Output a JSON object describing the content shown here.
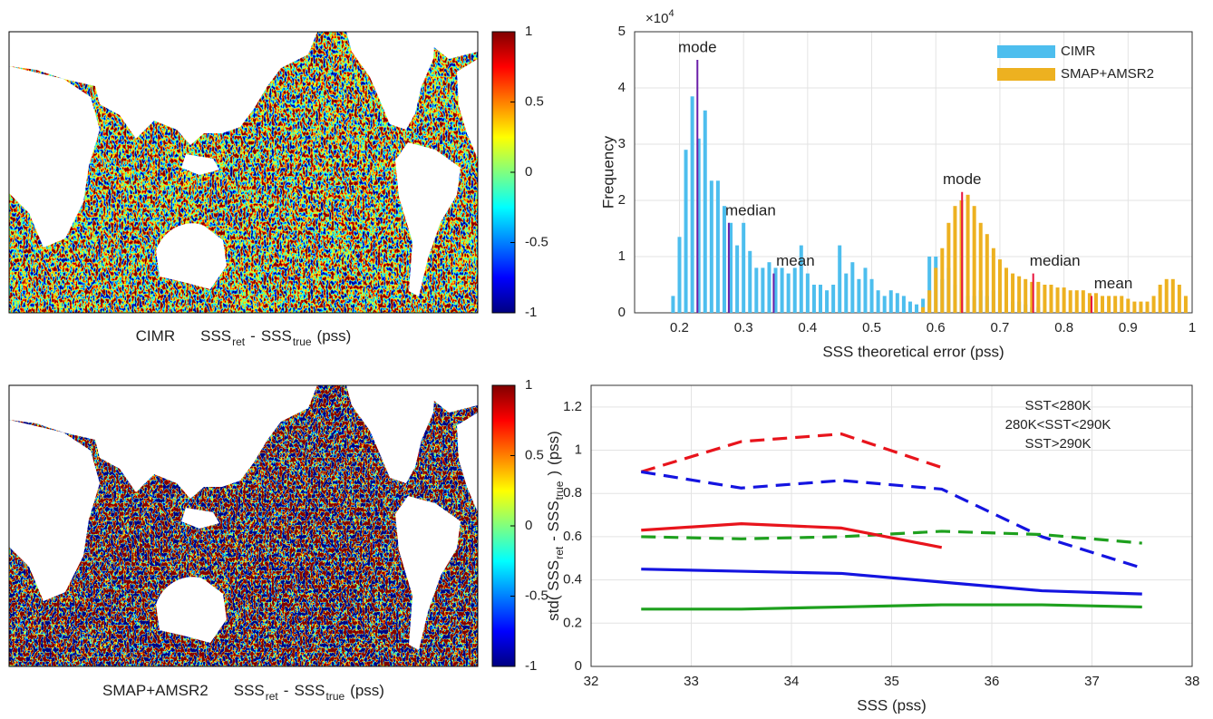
{
  "chart_data": [
    {
      "type": "map",
      "caption": {
        "label": "CIMR",
        "expr": [
          {
            "text": "SSS",
            "sub": "ret"
          },
          {
            "text": "-"
          },
          {
            "text": "SSS",
            "sub": "true"
          },
          {
            "text": "(pss)"
          }
        ]
      },
      "colorbar": {
        "clim": [
          -1,
          1
        ],
        "ticks": [
          -1,
          -0.5,
          0,
          0.5,
          1
        ]
      }
    },
    {
      "type": "map",
      "caption": {
        "label": "SMAP+AMSR2",
        "expr": [
          {
            "text": "SSS",
            "sub": "ret"
          },
          {
            "text": "-"
          },
          {
            "text": "SSS",
            "sub": "true"
          },
          {
            "text": "(pss)"
          }
        ]
      },
      "colorbar": {
        "clim": [
          -1,
          1
        ],
        "ticks": [
          -1,
          -0.5,
          0,
          0.5,
          1
        ]
      }
    },
    {
      "type": "bar",
      "x_label": "SSS theoretical error (pss)",
      "y_label": "Frequency",
      "y_exponent": {
        "base": "×10",
        "power": "4"
      },
      "xlim": [
        0.13,
        1
      ],
      "ylim": [
        0,
        5
      ],
      "xticks": [
        0.2,
        0.3,
        0.4,
        0.5,
        0.6,
        0.7,
        0.8,
        0.9,
        1
      ],
      "yticks": [
        0,
        1,
        2,
        3,
        4,
        5
      ],
      "grid": true,
      "legend": "northeast",
      "series": [
        {
          "name": "CIMR",
          "color": "#4dbeee",
          "x": [
            0.19,
            0.2,
            0.21,
            0.22,
            0.23,
            0.24,
            0.25,
            0.26,
            0.27,
            0.28,
            0.29,
            0.3,
            0.31,
            0.32,
            0.33,
            0.34,
            0.35,
            0.36,
            0.37,
            0.38,
            0.39,
            0.4,
            0.41,
            0.42,
            0.43,
            0.44,
            0.45,
            0.46,
            0.47,
            0.48,
            0.49,
            0.5,
            0.51,
            0.52,
            0.53,
            0.54,
            0.55,
            0.56,
            0.57,
            0.58,
            0.59,
            0.6,
            0.61,
            0.62,
            0.63,
            0.64,
            0.65,
            0.66,
            0.67,
            0.68,
            0.69,
            0.7,
            0.71,
            0.72,
            0.73,
            0.74,
            0.75,
            0.76,
            0.77,
            0.78
          ],
          "values": [
            0.3,
            1.35,
            2.9,
            3.85,
            3.1,
            3.6,
            2.35,
            2.35,
            1.9,
            1.6,
            1.2,
            1.6,
            1.1,
            0.8,
            0.8,
            0.9,
            0.8,
            0.8,
            0.7,
            0.8,
            1.2,
            0.7,
            0.5,
            0.5,
            0.4,
            0.5,
            1.2,
            0.7,
            0.9,
            0.6,
            0.8,
            0.6,
            0.4,
            0.3,
            0.4,
            0.35,
            0.3,
            0.2,
            0.15,
            0.25,
            1.0,
            1.0,
            0.6,
            0.8,
            0.5,
            0.6,
            0.3,
            0.3,
            0.4,
            0.3,
            0.4,
            0.4,
            0.3,
            0.2,
            0.2,
            0.15,
            0.1,
            0.1,
            0.05,
            0.05
          ]
        },
        {
          "name": "SMAP+AMSR2",
          "color": "#edb120",
          "x": [
            0.58,
            0.59,
            0.6,
            0.61,
            0.62,
            0.63,
            0.64,
            0.65,
            0.66,
            0.67,
            0.68,
            0.69,
            0.7,
            0.71,
            0.72,
            0.73,
            0.74,
            0.75,
            0.76,
            0.77,
            0.78,
            0.79,
            0.8,
            0.81,
            0.82,
            0.83,
            0.84,
            0.85,
            0.86,
            0.87,
            0.88,
            0.89,
            0.9,
            0.91,
            0.92,
            0.93,
            0.94,
            0.95,
            0.96,
            0.97,
            0.98,
            0.99
          ],
          "values": [
            0.1,
            0.4,
            0.8,
            1.15,
            1.6,
            1.9,
            2.0,
            2.1,
            1.9,
            1.6,
            1.4,
            1.15,
            0.95,
            0.8,
            0.7,
            0.65,
            0.6,
            0.55,
            0.55,
            0.5,
            0.5,
            0.45,
            0.45,
            0.4,
            0.4,
            0.4,
            0.35,
            0.35,
            0.3,
            0.3,
            0.3,
            0.3,
            0.25,
            0.2,
            0.2,
            0.2,
            0.3,
            0.5,
            0.6,
            0.6,
            0.5,
            0.3
          ]
        }
      ],
      "annotations": [
        {
          "text": "mode",
          "x": 0.228,
          "value": 4.5,
          "color": "#2a1fd6",
          "line_color": "#6a1fa8"
        },
        {
          "text": "median",
          "x": 0.277,
          "value": 1.6,
          "color": "#2a1fd6",
          "line_color": "#6a1fa8"
        },
        {
          "text": "mean",
          "x": 0.347,
          "value": 0.7,
          "color": "#2a1fd6",
          "line_color": "#6a1fa8"
        },
        {
          "text": "mode",
          "x": 0.641,
          "value": 2.15,
          "color": "#e8123c",
          "line_color": "#e8123c"
        },
        {
          "text": "median",
          "x": 0.752,
          "value": 0.7,
          "color": "#e8123c",
          "line_color": "#e8123c"
        },
        {
          "text": "mean",
          "x": 0.843,
          "value": 0.3,
          "color": "#e8123c",
          "line_color": "#e8123c"
        }
      ]
    },
    {
      "type": "line",
      "x_label": "SSS (pss)",
      "y_label": [
        {
          "text": "std( SSS",
          "sub": "ret"
        },
        {
          "text": "- SSS",
          "sub": "true"
        },
        {
          "text": ")"
        },
        {
          "text": "(pss)"
        }
      ],
      "xlim": [
        32,
        38
      ],
      "ylim": [
        0,
        1.3
      ],
      "xticks": [
        32,
        33,
        34,
        35,
        36,
        37,
        38
      ],
      "yticks": [
        0,
        0.2,
        0.4,
        0.6,
        0.8,
        1,
        1.2
      ],
      "grid": true,
      "x": [
        32.5,
        33.5,
        34.5,
        35.5,
        36.5,
        37.5
      ],
      "series": [
        {
          "color": "#e8141c",
          "dashed": true,
          "values": [
            0.9,
            1.04,
            1.075,
            0.92,
            null,
            null
          ]
        },
        {
          "color": "#1414e0",
          "dashed": true,
          "values": [
            0.9,
            0.825,
            0.86,
            0.82,
            0.6,
            0.455
          ]
        },
        {
          "color": "#1ea01e",
          "dashed": true,
          "values": [
            0.6,
            0.59,
            0.6,
            0.625,
            0.61,
            0.57
          ]
        },
        {
          "color": "#e8141c",
          "dashed": false,
          "values": [
            0.63,
            0.66,
            0.64,
            0.55,
            null,
            null
          ]
        },
        {
          "color": "#1414e0",
          "dashed": false,
          "values": [
            0.45,
            0.44,
            0.43,
            0.39,
            0.35,
            0.335
          ]
        },
        {
          "color": "#1ea01e",
          "dashed": false,
          "values": [
            0.265,
            0.265,
            0.275,
            0.285,
            0.285,
            0.275
          ]
        }
      ],
      "legend": [
        {
          "text": "SST<280K",
          "color": "#e8141c"
        },
        {
          "text": "280K<SST<290K",
          "color": "#1414e0"
        },
        {
          "text": "SST>290K",
          "color": "#1ea01e"
        }
      ]
    }
  ]
}
